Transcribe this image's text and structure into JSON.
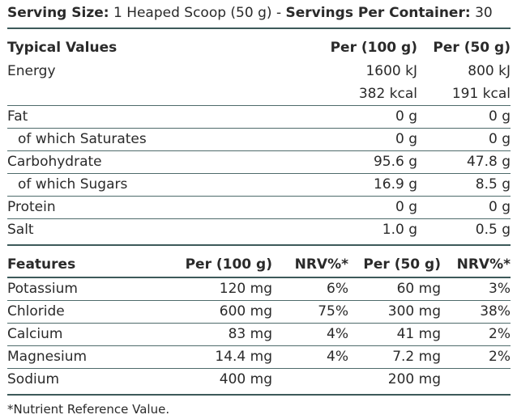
{
  "serving": {
    "size_label": "Serving Size:",
    "size_value": "1 Heaped Scoop (50 g)",
    "separator": "-",
    "per_container_label": "Servings Per Container:",
    "per_container_value": "30"
  },
  "typical": {
    "header": {
      "label": "Typical Values",
      "col1": "Per (100 g)",
      "col2": "Per (50 g)"
    },
    "rows": [
      {
        "label": "Energy",
        "col1": "1600 kJ",
        "col2": "800 kJ"
      },
      {
        "label": "",
        "col1": "382 kcal",
        "col2": "191 kcal"
      },
      {
        "label": "Fat",
        "col1": "0 g",
        "col2": "0 g"
      },
      {
        "label": "of which Saturates",
        "col1": "0 g",
        "col2": "0 g"
      },
      {
        "label": "Carbohydrate",
        "col1": "95.6 g",
        "col2": "47.8 g"
      },
      {
        "label": "of which Sugars",
        "col1": "16.9 g",
        "col2": "8.5 g"
      },
      {
        "label": "Protein",
        "col1": "0 g",
        "col2": "0 g"
      },
      {
        "label": "Salt",
        "col1": "1.0 g",
        "col2": "0.5 g"
      }
    ]
  },
  "features": {
    "header": {
      "label": "Features",
      "col1": "Per (100 g)",
      "col2": "NRV%*",
      "col3": "Per (50 g)",
      "col4": "NRV%*"
    },
    "rows": [
      {
        "label": "Potassium",
        "col1": "120 mg",
        "col2": "6%",
        "col3": "60 mg",
        "col4": "3%"
      },
      {
        "label": "Chloride",
        "col1": "600 mg",
        "col2": "75%",
        "col3": "300 mg",
        "col4": "38%"
      },
      {
        "label": "Calcium",
        "col1": "83 mg",
        "col2": "4%",
        "col3": "41 mg",
        "col4": "2%"
      },
      {
        "label": "Magnesium",
        "col1": "14.4 mg",
        "col2": "4%",
        "col3": "7.2 mg",
        "col4": "2%"
      },
      {
        "label": "Sodium",
        "col1": "400 mg",
        "col2": "",
        "col3": "200 mg",
        "col4": ""
      }
    ]
  },
  "footnote": "*Nutrient Reference Value."
}
